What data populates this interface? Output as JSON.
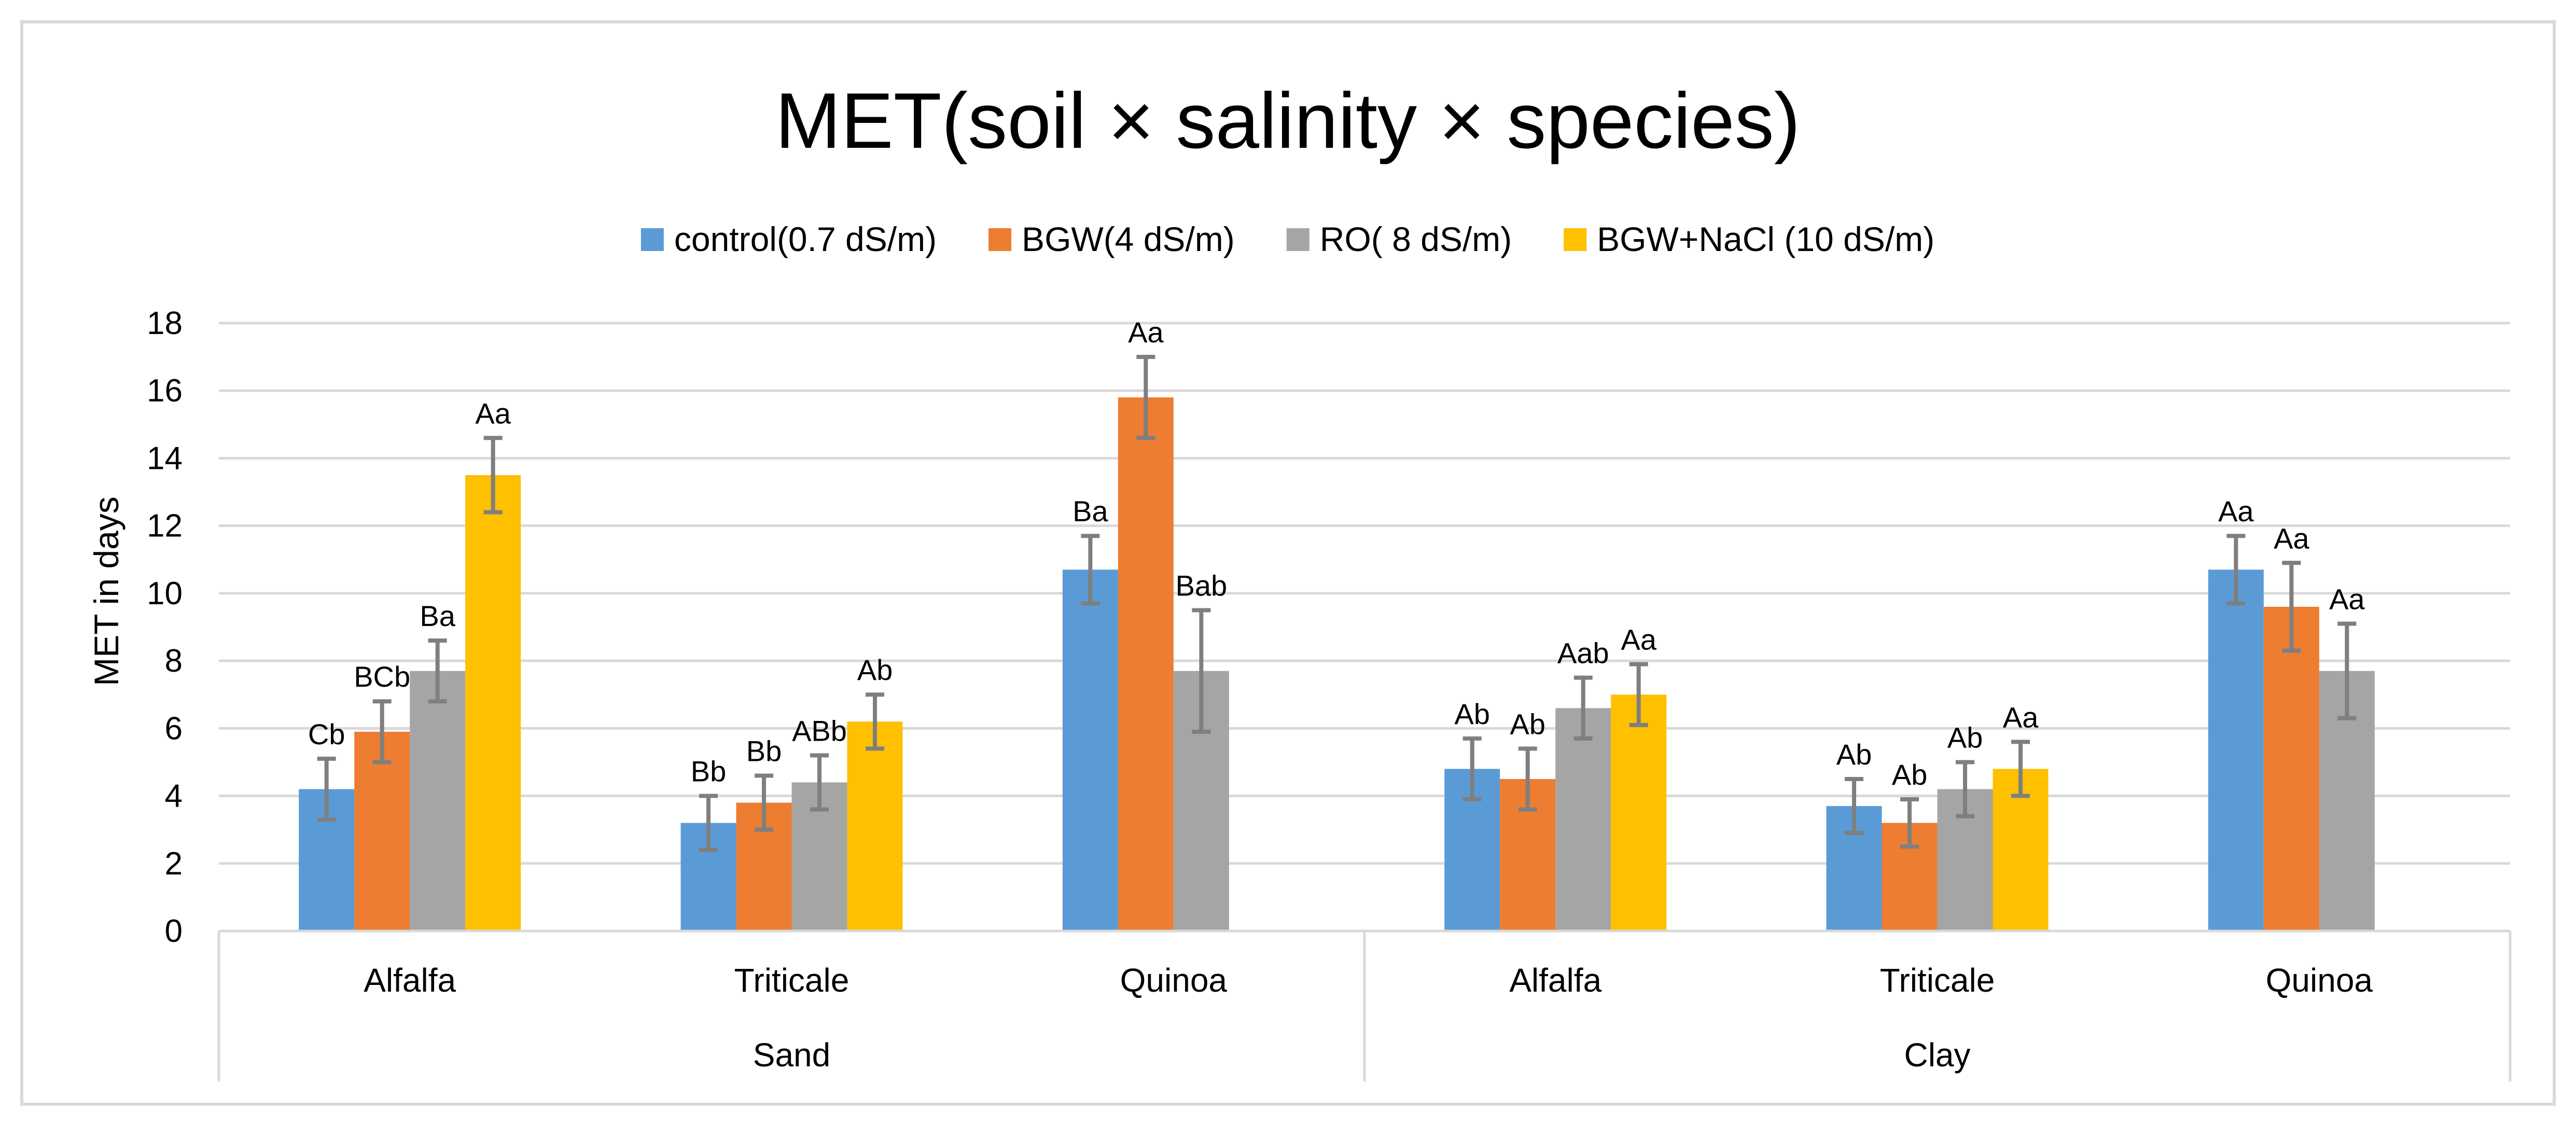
{
  "chart_data": {
    "type": "bar",
    "title": "MET(soil × salinity × species)",
    "ylabel": "MET in days",
    "xlabel": "",
    "ylim": [
      0,
      18
    ],
    "yticks": [
      0,
      2,
      4,
      6,
      8,
      10,
      12,
      14,
      16,
      18
    ],
    "groups": [
      {
        "name": "Sand",
        "categories": [
          "Alfalfa",
          "Triticale",
          "Quinoa"
        ]
      },
      {
        "name": "Clay",
        "categories": [
          "Alfalfa",
          "Triticale",
          "Quinoa"
        ]
      }
    ],
    "categories": [
      "Alfalfa",
      "Triticale",
      "Quinoa",
      "Alfalfa",
      "Triticale",
      "Quinoa"
    ],
    "legend_position": "top",
    "series": [
      {
        "name": "control(0.7 dS/m)",
        "color": "#5b9bd5",
        "values": [
          4.2,
          3.2,
          10.7,
          4.8,
          3.7,
          10.7
        ],
        "errors": [
          0.9,
          0.8,
          1.0,
          0.9,
          0.8,
          1.0
        ],
        "labels": [
          "Cb",
          "Bb",
          "Ba",
          "Ab",
          "Ab",
          "Aa"
        ]
      },
      {
        "name": "BGW(4 dS/m)",
        "color": "#ed7d31",
        "values": [
          5.9,
          3.8,
          15.8,
          4.5,
          3.2,
          9.6
        ],
        "errors": [
          0.9,
          0.8,
          1.2,
          0.9,
          0.7,
          1.3
        ],
        "labels": [
          "BCb",
          "Bb",
          "Aa",
          "Ab",
          "Ab",
          "Aa"
        ]
      },
      {
        "name": "RO( 8 dS/m)",
        "color": "#a5a5a5",
        "values": [
          7.7,
          4.4,
          7.7,
          6.6,
          4.2,
          7.7
        ],
        "errors": [
          0.9,
          0.8,
          1.8,
          0.9,
          0.8,
          1.4
        ],
        "labels": [
          "Ba",
          "ABb",
          "Bab",
          "Aab",
          "Ab",
          "Aa"
        ]
      },
      {
        "name": "BGW+NaCl (10 dS/m)",
        "color": "#ffc000",
        "values": [
          13.5,
          6.2,
          null,
          7.0,
          4.8,
          null
        ],
        "errors": [
          1.1,
          0.8,
          null,
          0.9,
          0.8,
          null
        ],
        "labels": [
          "Aa",
          "Ab",
          null,
          "Aa",
          "Aa",
          null
        ]
      }
    ]
  }
}
